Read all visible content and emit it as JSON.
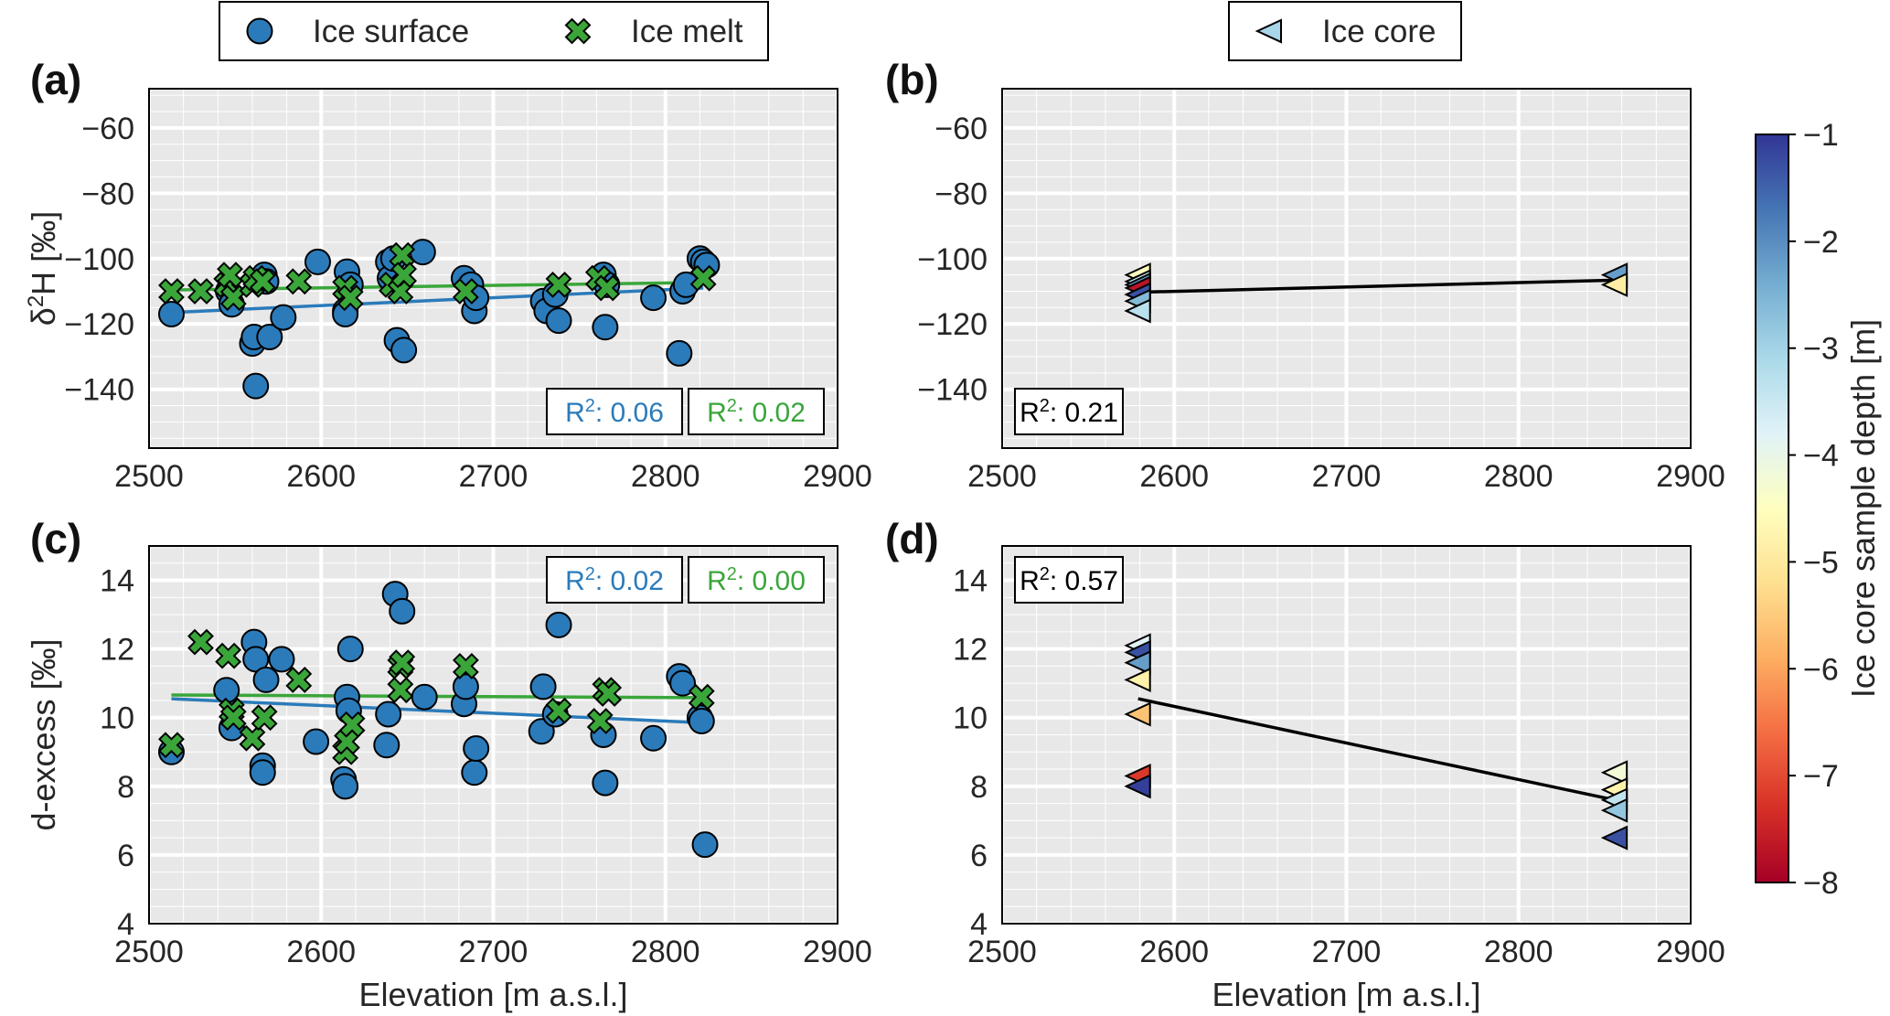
{
  "chart_data": {
    "type": "scatter",
    "legend_left": [
      {
        "label": "Ice surface",
        "marker": "circle",
        "color": "#2b7bba"
      },
      {
        "label": "Ice melt",
        "marker": "x",
        "color": "#3aa63a"
      }
    ],
    "legend_right": [
      {
        "label": "Ice core",
        "marker": "triangle-left",
        "color": "#a8d5e8"
      }
    ],
    "colorbar": {
      "label": "Ice core sample depth [m]",
      "range": [
        -8,
        -1
      ],
      "ticks": [
        "−1",
        "−2",
        "−3",
        "−4",
        "−5",
        "−6",
        "−7",
        "−8"
      ],
      "colormap": [
        "#a50026",
        "#d73027",
        "#f46d43",
        "#fdae61",
        "#fee090",
        "#ffffbf",
        "#e0f3f8",
        "#abd9e9",
        "#74add1",
        "#4575b4",
        "#313695"
      ]
    },
    "panels": [
      {
        "id": "a",
        "label": "(a)",
        "ylabel": "δ²H [‰]",
        "ylabel_main": "δ",
        "ylabel_sup": "2",
        "ylabel_rest": "H [‰]",
        "xlabel": "",
        "xlim": [
          2500,
          2900
        ],
        "ylim": [
          -158,
          -48
        ],
        "xticks": [
          2500,
          2600,
          2700,
          2800,
          2900
        ],
        "xtick_labels": [
          "2500",
          "2600",
          "2700",
          "2800",
          "2900"
        ],
        "yticks": [
          -140,
          -120,
          -100,
          -80,
          -60
        ],
        "ytick_labels": [
          "−140",
          "−120",
          "−100",
          "−80",
          "−60"
        ],
        "series": [
          {
            "name": "Ice surface",
            "marker": "circle",
            "color": "#2b7bba",
            "points": [
              [
                2513,
                -117
              ],
              [
                2546,
                -110
              ],
              [
                2548,
                -114
              ],
              [
                2560,
                -126
              ],
              [
                2561,
                -124
              ],
              [
                2562,
                -139
              ],
              [
                2567,
                -105
              ],
              [
                2568,
                -107
              ],
              [
                2570,
                -124
              ],
              [
                2578,
                -118
              ],
              [
                2598,
                -101
              ],
              [
                2614,
                -116
              ],
              [
                2614,
                -117
              ],
              [
                2615,
                -104
              ],
              [
                2617,
                -108
              ],
              [
                2639,
                -101
              ],
              [
                2640,
                -106
              ],
              [
                2642,
                -100
              ],
              [
                2644,
                -125
              ],
              [
                2648,
                -128
              ],
              [
                2659,
                -98
              ],
              [
                2683,
                -106
              ],
              [
                2687,
                -108
              ],
              [
                2689,
                -116
              ],
              [
                2690,
                -112
              ],
              [
                2729,
                -113
              ],
              [
                2731,
                -116
              ],
              [
                2736,
                -111
              ],
              [
                2738,
                -119
              ],
              [
                2764,
                -105
              ],
              [
                2765,
                -121
              ],
              [
                2766,
                -108
              ],
              [
                2793,
                -112
              ],
              [
                2808,
                -129
              ],
              [
                2810,
                -110
              ],
              [
                2812,
                -108
              ],
              [
                2820,
                -100
              ],
              [
                2822,
                -101
              ],
              [
                2824,
                -102
              ]
            ]
          },
          {
            "name": "Ice melt",
            "marker": "x",
            "color": "#3aa63a",
            "points": [
              [
                2513,
                -110
              ],
              [
                2530,
                -110
              ],
              [
                2545,
                -108
              ],
              [
                2547,
                -105
              ],
              [
                2549,
                -112
              ],
              [
                2560,
                -108
              ],
              [
                2562,
                -106
              ],
              [
                2566,
                -107
              ],
              [
                2587,
                -107
              ],
              [
                2614,
                -109
              ],
              [
                2617,
                -112
              ],
              [
                2641,
                -108
              ],
              [
                2646,
                -110
              ],
              [
                2647,
                -99
              ],
              [
                2648,
                -105
              ],
              [
                2684,
                -110
              ],
              [
                2738,
                -108
              ],
              [
                2761,
                -106
              ],
              [
                2766,
                -109
              ],
              [
                2822,
                -106
              ]
            ]
          }
        ],
        "fits": [
          {
            "series": "Ice surface",
            "color": "#2b7bba",
            "x": [
              2513,
              2822
            ],
            "y": [
              -116.5,
              -109.0
            ]
          },
          {
            "series": "Ice melt",
            "color": "#3aa63a",
            "x": [
              2513,
              2822
            ],
            "y": [
              -109.6,
              -107.3
            ]
          }
        ],
        "r2": [
          {
            "prefix": "R",
            "sup": "2",
            "text": ": 0.06",
            "color": "#2b7bba",
            "pos": "bottom-right-1"
          },
          {
            "prefix": "R",
            "sup": "2",
            "text": ": 0.02",
            "color": "#3aa63a",
            "pos": "bottom-right-2"
          }
        ]
      },
      {
        "id": "b",
        "label": "(b)",
        "ylabel": "",
        "xlabel": "",
        "xlim": [
          2500,
          2900
        ],
        "ylim": [
          -158,
          -48
        ],
        "xticks": [
          2500,
          2600,
          2700,
          2800,
          2900
        ],
        "xtick_labels": [
          "2500",
          "2600",
          "2700",
          "2800",
          "2900"
        ],
        "yticks": [
          -140,
          -120,
          -100,
          -80,
          -60
        ],
        "ytick_labels": [
          "−140",
          "−120",
          "−100",
          "−80",
          "−60"
        ],
        "series": [
          {
            "name": "Ice core",
            "marker": "triangle-left",
            "points": [
              [
                2579,
                -105,
                -4.5
              ],
              [
                2579,
                -107,
                -3.6
              ],
              [
                2579,
                -108,
                -2.2
              ],
              [
                2579,
                -109,
                -7.7
              ],
              [
                2579,
                -111,
                -1.3
              ],
              [
                2579,
                -113,
                -2.6
              ],
              [
                2579,
                -116,
                -3.3
              ],
              [
                2856,
                -105,
                -2.2
              ],
              [
                2856,
                -108,
                -4.9
              ]
            ]
          }
        ],
        "fits": [
          {
            "series": "Ice core",
            "color": "#000000",
            "x": [
              2579,
              2856
            ],
            "y": [
              -110.3,
              -106.6
            ]
          }
        ],
        "r2": [
          {
            "prefix": "R",
            "sup": "2",
            "text": ": 0.21",
            "color": "#000000",
            "pos": "bottom-left"
          }
        ]
      },
      {
        "id": "c",
        "label": "(c)",
        "ylabel": "d-excess [‰]",
        "xlabel": "Elevation [m a.s.l.]",
        "xlim": [
          2500,
          2900
        ],
        "ylim": [
          4,
          15
        ],
        "xticks": [
          2500,
          2600,
          2700,
          2800,
          2900
        ],
        "xtick_labels": [
          "2500",
          "2600",
          "2700",
          "2800",
          "2900"
        ],
        "yticks": [
          4,
          6,
          8,
          10,
          12,
          14
        ],
        "ytick_labels": [
          "4",
          "6",
          "8",
          "10",
          "12",
          "14"
        ],
        "series": [
          {
            "name": "Ice surface",
            "marker": "circle",
            "color": "#2b7bba",
            "points": [
              [
                2513,
                9.0
              ],
              [
                2545,
                10.8
              ],
              [
                2548,
                9.7
              ],
              [
                2561,
                12.2
              ],
              [
                2562,
                11.7
              ],
              [
                2566,
                8.6
              ],
              [
                2566,
                8.4
              ],
              [
                2568,
                11.1
              ],
              [
                2577,
                11.7
              ],
              [
                2597,
                9.3
              ],
              [
                2613,
                8.2
              ],
              [
                2614,
                8.0
              ],
              [
                2615,
                10.6
              ],
              [
                2616,
                10.2
              ],
              [
                2617,
                12.0
              ],
              [
                2638,
                9.2
              ],
              [
                2639,
                10.1
              ],
              [
                2643,
                13.6
              ],
              [
                2647,
                13.1
              ],
              [
                2660,
                10.6
              ],
              [
                2683,
                10.4
              ],
              [
                2684,
                10.9
              ],
              [
                2689,
                8.4
              ],
              [
                2690,
                9.1
              ],
              [
                2728,
                9.6
              ],
              [
                2729,
                10.9
              ],
              [
                2736,
                10.1
              ],
              [
                2738,
                12.7
              ],
              [
                2764,
                9.5
              ],
              [
                2765,
                8.1
              ],
              [
                2793,
                9.4
              ],
              [
                2808,
                11.2
              ],
              [
                2810,
                11.0
              ],
              [
                2820,
                10.0
              ],
              [
                2821,
                9.9
              ],
              [
                2823,
                6.3
              ]
            ]
          },
          {
            "name": "Ice melt",
            "marker": "x",
            "color": "#3aa63a",
            "points": [
              [
                2513,
                9.2
              ],
              [
                2530,
                12.2
              ],
              [
                2546,
                11.8
              ],
              [
                2548,
                10.2
              ],
              [
                2549,
                10.0
              ],
              [
                2560,
                9.4
              ],
              [
                2567,
                10.0
              ],
              [
                2587,
                11.1
              ],
              [
                2614,
                9.0
              ],
              [
                2615,
                9.3
              ],
              [
                2618,
                9.8
              ],
              [
                2646,
                11.5
              ],
              [
                2646,
                10.8
              ],
              [
                2647,
                11.6
              ],
              [
                2684,
                11.5
              ],
              [
                2738,
                10.2
              ],
              [
                2762,
                9.9
              ],
              [
                2765,
                10.8
              ],
              [
                2767,
                10.7
              ],
              [
                2821,
                10.6
              ]
            ]
          }
        ],
        "fits": [
          {
            "series": "Ice surface",
            "color": "#2b7bba",
            "x": [
              2513,
              2822
            ],
            "y": [
              10.55,
              9.85
            ]
          },
          {
            "series": "Ice melt",
            "color": "#3aa63a",
            "x": [
              2513,
              2822
            ],
            "y": [
              10.66,
              10.58
            ]
          }
        ],
        "r2": [
          {
            "prefix": "R",
            "sup": "2",
            "text": ": 0.02",
            "color": "#2b7bba",
            "pos": "top-right-1"
          },
          {
            "prefix": "R",
            "sup": "2",
            "text": ": 0.00",
            "color": "#3aa63a",
            "pos": "top-right-2"
          }
        ]
      },
      {
        "id": "d",
        "label": "(d)",
        "ylabel": "",
        "xlabel": "Elevation [m a.s.l.]",
        "xlim": [
          2500,
          2900
        ],
        "ylim": [
          4,
          15
        ],
        "xticks": [
          2500,
          2600,
          2700,
          2800,
          2900
        ],
        "xtick_labels": [
          "2500",
          "2600",
          "2700",
          "2800",
          "2900"
        ],
        "yticks": [
          4,
          6,
          8,
          10,
          12,
          14
        ],
        "ytick_labels": [
          "4",
          "6",
          "8",
          "10",
          "12",
          "14"
        ],
        "series": [
          {
            "name": "Ice core",
            "marker": "triangle-left",
            "points": [
              [
                2579,
                12.1,
                -3.8
              ],
              [
                2579,
                11.9,
                -1.3
              ],
              [
                2579,
                11.6,
                -2.2
              ],
              [
                2579,
                11.1,
                -4.8
              ],
              [
                2579,
                10.1,
                -5.6
              ],
              [
                2579,
                8.3,
                -7.2
              ],
              [
                2579,
                8.0,
                -1.1
              ],
              [
                2856,
                8.4,
                -4.2
              ],
              [
                2856,
                7.9,
                -4.8
              ],
              [
                2856,
                7.6,
                -3.4
              ],
              [
                2856,
                7.3,
                -2.8
              ],
              [
                2856,
                6.5,
                -1.3
              ]
            ]
          }
        ],
        "fits": [
          {
            "series": "Ice core",
            "color": "#000000",
            "x": [
              2579,
              2856
            ],
            "y": [
              10.55,
              7.6
            ]
          }
        ],
        "r2": [
          {
            "prefix": "R",
            "sup": "2",
            "text": ": 0.57",
            "color": "#000000",
            "pos": "top-left"
          }
        ]
      }
    ]
  }
}
